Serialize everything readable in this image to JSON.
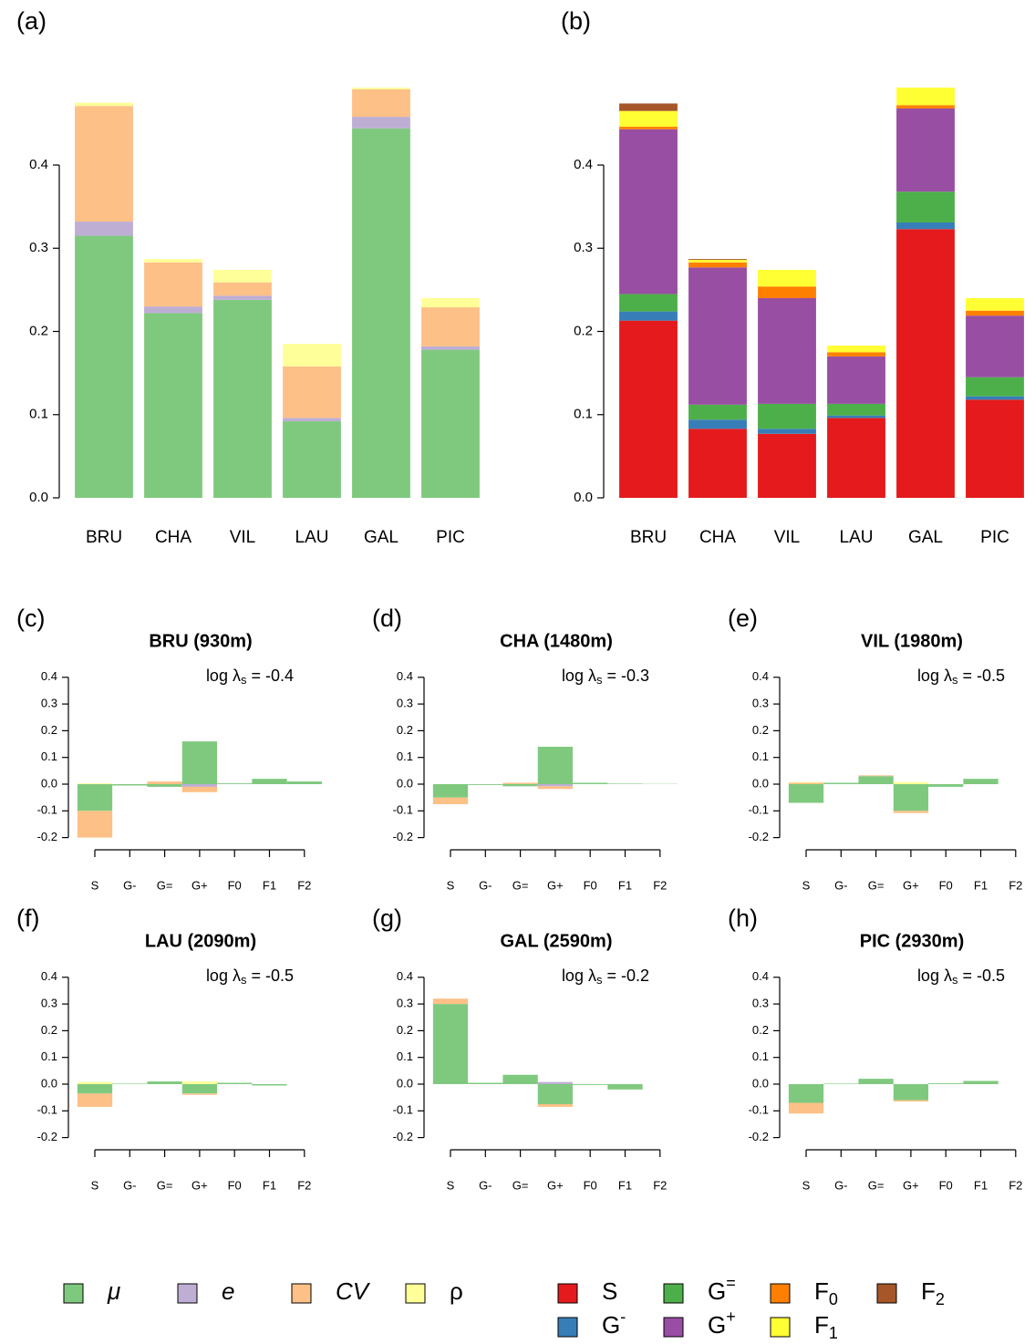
{
  "chart_data": [
    {
      "type": "stacked_bar",
      "label": "(a)",
      "categories": [
        "BRU",
        "CHA",
        "VIL",
        "LAU",
        "GAL",
        "PIC"
      ],
      "series": [
        {
          "name": "μ",
          "color": "#7fc97f",
          "values": [
            0.315,
            0.222,
            0.238,
            0.092,
            0.444,
            0.178
          ]
        },
        {
          "name": "e",
          "color": "#beaed4",
          "values": [
            0.017,
            0.008,
            0.005,
            0.004,
            0.014,
            0.004
          ]
        },
        {
          "name": "CV",
          "color": "#fdc086",
          "values": [
            0.139,
            0.053,
            0.016,
            0.062,
            0.033,
            0.047
          ]
        },
        {
          "name": "ρ",
          "color": "#ffff99",
          "values": [
            0.004,
            0.004,
            0.015,
            0.027,
            0.002,
            0.011
          ]
        }
      ],
      "ylim": [
        0,
        0.5
      ],
      "yticks": [
        {
          "value": 0,
          "label": "0.0"
        },
        0.1,
        0.2,
        0.3,
        0.4
      ]
    },
    {
      "type": "stacked_bar",
      "label": "(b)",
      "categories": [
        "BRU",
        "CHA",
        "VIL",
        "LAU",
        "GAL",
        "PIC"
      ],
      "series": [
        {
          "name": "S",
          "color": "#e41a1c",
          "values": [
            0.213,
            0.083,
            0.077,
            0.096,
            0.323,
            0.118
          ]
        },
        {
          "name": "G-",
          "color": "#377eb8",
          "values": [
            0.011,
            0.011,
            0.006,
            0.003,
            0.008,
            0.004
          ]
        },
        {
          "name": "G=",
          "color": "#4daf4a",
          "values": [
            0.021,
            0.018,
            0.03,
            0.014,
            0.037,
            0.023
          ]
        },
        {
          "name": "G+",
          "color": "#984ea3",
          "values": [
            0.198,
            0.165,
            0.127,
            0.057,
            0.1,
            0.074
          ]
        },
        {
          "name": "F0",
          "color": "#ff7f00",
          "values": [
            0.003,
            0.006,
            0.014,
            0.005,
            0.004,
            0.006
          ]
        },
        {
          "name": "F1",
          "color": "#ffff33",
          "values": [
            0.019,
            0.003,
            0.02,
            0.008,
            0.021,
            0.015
          ]
        },
        {
          "name": "F2",
          "color": "#a65628",
          "values": [
            0.009,
            0.001,
            0,
            0,
            0,
            0
          ]
        }
      ],
      "ylim": [
        0,
        0.5
      ],
      "yticks": [
        {
          "value": 0,
          "label": "0.0"
        },
        0.1,
        0.2,
        0.3,
        0.4
      ]
    },
    {
      "type": "contribution_bar",
      "label": "(c)",
      "title": "BRU (930m)",
      "annotation": {
        "base": "log λ",
        "subscript": "s",
        "rest": " = -0.4"
      },
      "categories": [
        "S",
        "G-",
        "G=",
        "G+",
        "F0",
        "F1",
        "F2"
      ],
      "series": [
        {
          "color": "#7fc97f",
          "values": [
            -0.1,
            -0.005,
            -0.01,
            0.16,
            0.003,
            0.02,
            0.01
          ]
        },
        {
          "color": "#beaed4",
          "values": [
            0,
            0,
            0,
            -0.01,
            0,
            0,
            0
          ]
        },
        {
          "color": "#fdc086",
          "values": [
            -0.1,
            0,
            0.01,
            -0.02,
            0,
            0,
            0
          ]
        },
        {
          "color": "#ffff99",
          "values": [
            0.003,
            0,
            0,
            0,
            0,
            0,
            0
          ]
        }
      ],
      "ylim": [
        -0.2,
        0.4
      ],
      "yticks": [
        -0.2,
        -0.1,
        {
          "value": 0,
          "label": "0.0"
        },
        0.1,
        0.2,
        0.3,
        0.4
      ]
    },
    {
      "type": "contribution_bar",
      "label": "(d)",
      "title": "CHA (1480m)",
      "annotation": {
        "base": "log λ",
        "subscript": "s",
        "rest": " = -0.3"
      },
      "categories": [
        "S",
        "G-",
        "G=",
        "G+",
        "F0",
        "F1",
        "F2"
      ],
      "series": [
        {
          "color": "#7fc97f",
          "values": [
            -0.05,
            -0.003,
            -0.008,
            0.14,
            0.005,
            0.002,
            0.001
          ]
        },
        {
          "color": "#beaed4",
          "values": [
            0,
            0,
            0,
            -0.008,
            0,
            0,
            0
          ]
        },
        {
          "color": "#fdc086",
          "values": [
            -0.025,
            0,
            0.005,
            -0.01,
            0,
            0,
            0
          ]
        },
        {
          "color": "#ffff99",
          "values": [
            0,
            0,
            0,
            0,
            0,
            0,
            0
          ]
        }
      ],
      "ylim": [
        -0.2,
        0.4
      ],
      "yticks": [
        -0.2,
        -0.1,
        {
          "value": 0,
          "label": "0.0"
        },
        0.1,
        0.2,
        0.3,
        0.4
      ]
    },
    {
      "type": "contribution_bar",
      "label": "(e)",
      "title": "VIL (1980m)",
      "annotation": {
        "base": "log λ",
        "subscript": "s",
        "rest": " = -0.5"
      },
      "categories": [
        "S",
        "G-",
        "G=",
        "G+",
        "F0",
        "F1",
        "F2"
      ],
      "series": [
        {
          "color": "#7fc97f",
          "values": [
            -0.07,
            0.005,
            0.03,
            -0.1,
            -0.01,
            0.02,
            0
          ]
        },
        {
          "color": "#beaed4",
          "values": [
            0,
            0,
            0,
            0,
            0,
            0,
            0
          ]
        },
        {
          "color": "#fdc086",
          "values": [
            0.005,
            0,
            0.003,
            -0.008,
            0,
            0,
            0
          ]
        },
        {
          "color": "#ffff99",
          "values": [
            0.003,
            0,
            0,
            0.008,
            0,
            0,
            0
          ]
        }
      ],
      "ylim": [
        -0.2,
        0.4
      ],
      "yticks": [
        -0.2,
        -0.1,
        {
          "value": 0,
          "label": "0.0"
        },
        0.1,
        0.2,
        0.3,
        0.4
      ]
    },
    {
      "type": "contribution_bar",
      "label": "(f)",
      "title": "LAU (2090m)",
      "annotation": {
        "base": "log λ",
        "subscript": "s",
        "rest": " = -0.5"
      },
      "categories": [
        "S",
        "G-",
        "G=",
        "G+",
        "F0",
        "F1",
        "F2"
      ],
      "series": [
        {
          "color": "#7fc97f",
          "values": [
            -0.035,
            0.002,
            0.01,
            -0.035,
            0.005,
            -0.005,
            0
          ]
        },
        {
          "color": "#beaed4",
          "values": [
            0,
            0,
            0,
            0,
            0,
            0,
            0
          ]
        },
        {
          "color": "#fdc086",
          "values": [
            -0.05,
            0,
            0,
            -0.005,
            0,
            0,
            0
          ]
        },
        {
          "color": "#ffff99",
          "values": [
            0.008,
            0,
            0,
            0.01,
            0,
            0,
            0
          ]
        }
      ],
      "ylim": [
        -0.2,
        0.4
      ],
      "yticks": [
        -0.2,
        -0.1,
        {
          "value": 0,
          "label": "0.0"
        },
        0.1,
        0.2,
        0.3,
        0.4
      ]
    },
    {
      "type": "contribution_bar",
      "label": "(g)",
      "title": "GAL (2590m)",
      "annotation": {
        "base": "log λ",
        "subscript": "s",
        "rest": " = -0.2"
      },
      "categories": [
        "S",
        "G-",
        "G=",
        "G+",
        "F0",
        "F1",
        "F2"
      ],
      "series": [
        {
          "color": "#7fc97f",
          "values": [
            0.3,
            0.005,
            0.035,
            -0.075,
            -0.003,
            -0.02,
            0
          ]
        },
        {
          "color": "#beaed4",
          "values": [
            0,
            0,
            0,
            0.008,
            0,
            0,
            0
          ]
        },
        {
          "color": "#fdc086",
          "values": [
            0.02,
            0,
            0,
            -0.01,
            0,
            0,
            0
          ]
        },
        {
          "color": "#ffff99",
          "values": [
            0,
            0,
            0,
            0,
            0,
            0,
            0
          ]
        }
      ],
      "ylim": [
        -0.2,
        0.4
      ],
      "yticks": [
        -0.2,
        -0.1,
        {
          "value": 0,
          "label": "0.0"
        },
        0.1,
        0.2,
        0.3,
        0.4
      ]
    },
    {
      "type": "contribution_bar",
      "label": "(h)",
      "title": "PIC (2930m)",
      "annotation": {
        "base": "log λ",
        "subscript": "s",
        "rest": " = -0.5"
      },
      "categories": [
        "S",
        "G-",
        "G=",
        "G+",
        "F0",
        "F1",
        "F2"
      ],
      "series": [
        {
          "color": "#7fc97f",
          "values": [
            -0.07,
            0.002,
            0.02,
            -0.06,
            0.003,
            0.012,
            0
          ]
        },
        {
          "color": "#beaed4",
          "values": [
            0,
            0,
            0,
            0,
            0,
            0,
            0
          ]
        },
        {
          "color": "#fdc086",
          "values": [
            -0.04,
            0,
            0,
            -0.005,
            0,
            0,
            0
          ]
        },
        {
          "color": "#ffff99",
          "values": [
            0,
            0,
            0,
            0,
            0,
            0,
            0
          ]
        }
      ],
      "ylim": [
        -0.2,
        0.4
      ],
      "yticks": [
        -0.2,
        -0.1,
        {
          "value": 0,
          "label": "0.0"
        },
        0.1,
        0.2,
        0.3,
        0.4
      ]
    }
  ]
}
